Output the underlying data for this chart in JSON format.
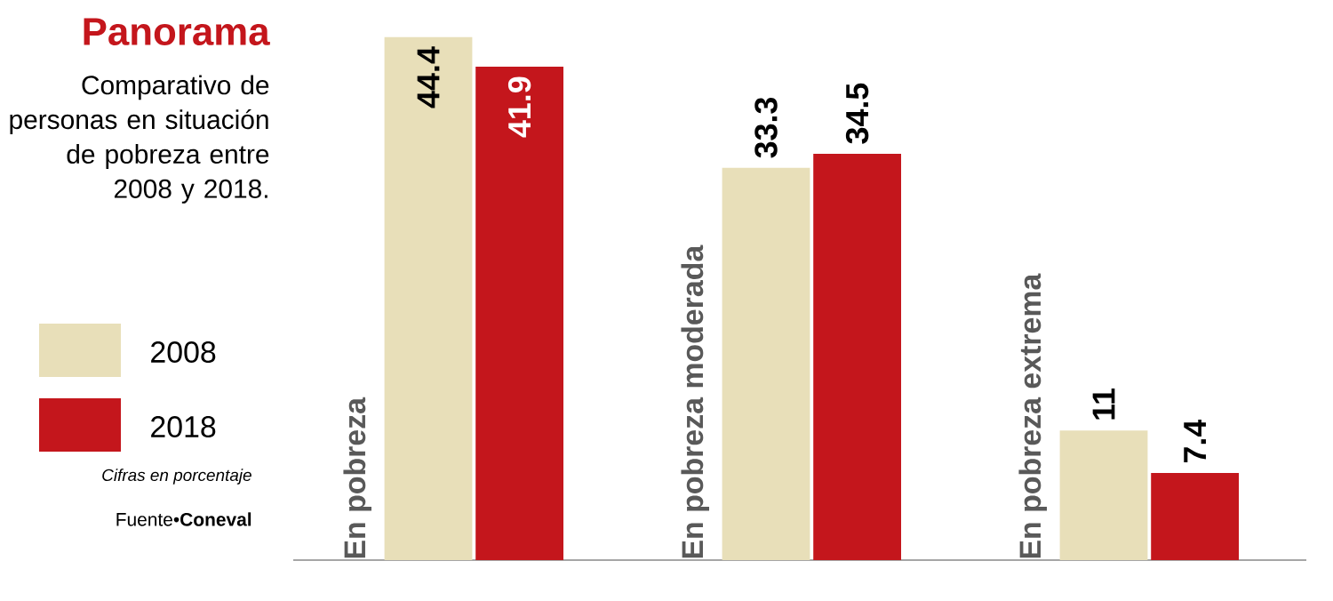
{
  "chart_data": {
    "type": "bar",
    "title": "Panorama",
    "subtitle": "Comparativo de personas en situación de pobreza entre 2008 y 2018.",
    "categories": [
      "En pobreza",
      "En pobreza moderada",
      "En pobreza extrema"
    ],
    "series": [
      {
        "name": "2008",
        "color": "#e8dfb9",
        "values": [
          44.4,
          33.3,
          11
        ]
      },
      {
        "name": "2018",
        "color": "#c4161c",
        "values": [
          41.9,
          34.5,
          7.4
        ]
      }
    ],
    "data_labels": true,
    "legend": "left",
    "annotations": [
      "*Cifras en porcentaje*",
      "Fuente•**Coneval**"
    ]
  }
}
